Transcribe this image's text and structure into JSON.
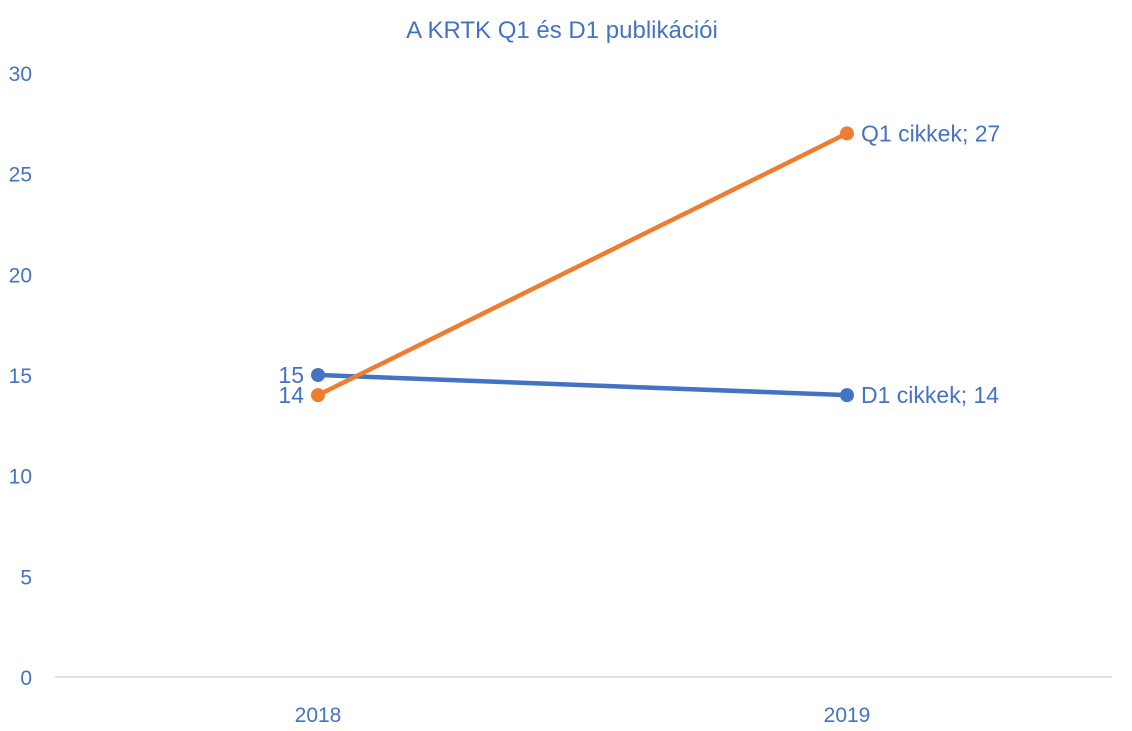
{
  "colors": {
    "text": "#4472c4",
    "axis": "#d9d9d9",
    "background": "#ffffff"
  },
  "chart_data": {
    "type": "line",
    "title": "A KRTK Q1 és D1 publikációi",
    "xlabel": "",
    "ylabel": "",
    "categories": [
      "2018",
      "2019"
    ],
    "ylim": [
      0,
      30
    ],
    "yticks": [
      0,
      5,
      10,
      15,
      20,
      25,
      30
    ],
    "grid": false,
    "legend": "none",
    "series": [
      {
        "name": "D1 cikkek",
        "values": [
          15,
          14
        ],
        "color": "#4472c4",
        "data_labels": [
          "15",
          "D1 cikkek; 14"
        ]
      },
      {
        "name": "Q1 cikkek",
        "values": [
          14,
          27
        ],
        "color": "#ed7d31",
        "data_labels": [
          "14",
          "Q1 cikkek; 27"
        ]
      }
    ]
  }
}
